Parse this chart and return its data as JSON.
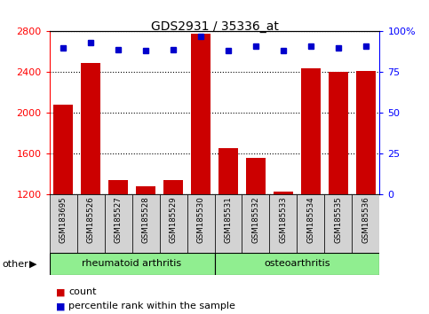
{
  "title": "GDS2931 / 35336_at",
  "samples": [
    "GSM183695",
    "GSM185526",
    "GSM185527",
    "GSM185528",
    "GSM185529",
    "GSM185530",
    "GSM185531",
    "GSM185532",
    "GSM185533",
    "GSM185534",
    "GSM185535",
    "GSM185536"
  ],
  "counts": [
    2080,
    2490,
    1340,
    1280,
    1340,
    2780,
    1660,
    1560,
    1230,
    2440,
    2400,
    2410
  ],
  "percentiles": [
    90,
    93,
    89,
    88,
    89,
    97,
    88,
    91,
    88,
    91,
    90,
    91
  ],
  "ylim_left": [
    1200,
    2800
  ],
  "ylim_right": [
    0,
    100
  ],
  "yticks_left": [
    1200,
    1600,
    2000,
    2400,
    2800
  ],
  "yticks_right": [
    0,
    25,
    50,
    75,
    100
  ],
  "ytick_right_labels": [
    "0",
    "25",
    "50",
    "75",
    "100%"
  ],
  "group1_label": "rheumatoid arthritis",
  "group2_label": "osteoarthritis",
  "group1_count": 6,
  "group2_count": 6,
  "bar_color": "#cc0000",
  "dot_color": "#0000cc",
  "group_bg_color": "#90ee90",
  "sample_bg_color": "#d3d3d3",
  "legend_count_label": "count",
  "legend_percentile_label": "percentile rank within the sample",
  "other_label": "other",
  "fig_width": 4.83,
  "fig_height": 3.54,
  "dpi": 100
}
